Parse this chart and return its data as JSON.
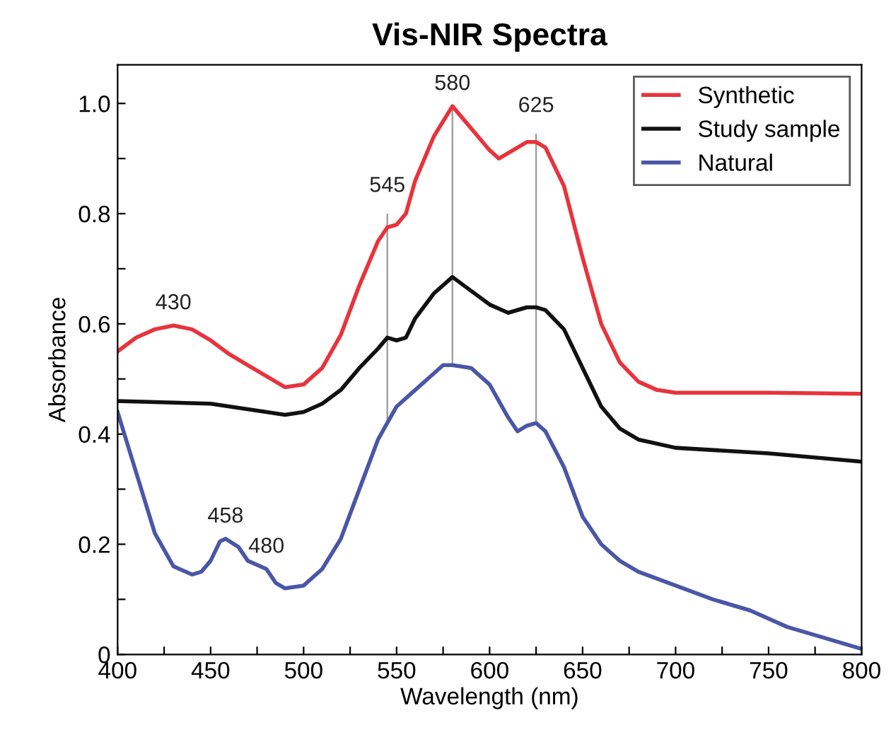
{
  "chart_data": {
    "type": "line",
    "title": "Vis-NIR Spectra",
    "xlabel": "Wavelength (nm)",
    "ylabel": "Absorbance",
    "xlim": [
      400,
      800
    ],
    "xticks": [
      400,
      {
        "value": 425,
        "label": null
      },
      450,
      {
        "value": 475,
        "label": null
      },
      500,
      {
        "value": 525,
        "label": null
      },
      550,
      {
        "value": 575,
        "label": null
      },
      600,
      {
        "value": 625,
        "label": null
      },
      650,
      {
        "value": 675,
        "label": null
      },
      700,
      {
        "value": 725,
        "label": null
      },
      750,
      {
        "value": 775,
        "label": null
      },
      800
    ],
    "ylim": [
      0,
      1.07
    ],
    "yticks": [
      0,
      {
        "value": 0.1,
        "label": null
      },
      0.2,
      {
        "value": 0.3,
        "label": null
      },
      0.4,
      {
        "value": 0.5,
        "label": null
      },
      0.6,
      {
        "value": 0.7,
        "label": null
      },
      0.8,
      {
        "value": 0.9,
        "label": null
      },
      {
        "value": 1,
        "label": "1.0"
      }
    ],
    "grid": false,
    "legend": "top right",
    "marker": "none",
    "line_style": "solid",
    "series": [
      {
        "name": "Synthetic",
        "color": "#e8333c",
        "x": [
          400,
          410,
          420,
          430,
          440,
          450,
          460,
          470,
          480,
          490,
          500,
          510,
          520,
          530,
          540,
          545,
          550,
          555,
          560,
          570,
          580,
          590,
          600,
          605,
          610,
          620,
          625,
          630,
          640,
          650,
          660,
          670,
          680,
          690,
          700,
          750,
          800
        ],
        "values": [
          0.55,
          0.575,
          0.59,
          0.597,
          0.59,
          0.57,
          0.545,
          0.525,
          0.505,
          0.485,
          0.49,
          0.52,
          0.58,
          0.67,
          0.75,
          0.775,
          0.78,
          0.8,
          0.86,
          0.94,
          0.995,
          0.955,
          0.915,
          0.9,
          0.91,
          0.93,
          0.93,
          0.92,
          0.85,
          0.72,
          0.6,
          0.53,
          0.495,
          0.48,
          0.475,
          0.475,
          0.473
        ]
      },
      {
        "name": "Study sample",
        "color": "#111111",
        "x": [
          400,
          450,
          480,
          490,
          500,
          510,
          520,
          530,
          540,
          545,
          550,
          555,
          560,
          570,
          580,
          590,
          600,
          610,
          620,
          625,
          630,
          640,
          650,
          660,
          670,
          680,
          700,
          750,
          800
        ],
        "values": [
          0.46,
          0.455,
          0.44,
          0.435,
          0.44,
          0.455,
          0.48,
          0.52,
          0.555,
          0.575,
          0.57,
          0.575,
          0.61,
          0.655,
          0.685,
          0.66,
          0.635,
          0.62,
          0.63,
          0.63,
          0.625,
          0.59,
          0.52,
          0.45,
          0.41,
          0.39,
          0.375,
          0.365,
          0.35
        ]
      },
      {
        "name": "Natural",
        "color": "#4a56a6",
        "x": [
          400,
          410,
          420,
          430,
          440,
          445,
          450,
          455,
          458,
          465,
          470,
          480,
          485,
          490,
          500,
          510,
          520,
          530,
          540,
          550,
          560,
          570,
          575,
          580,
          590,
          600,
          610,
          615,
          620,
          625,
          630,
          640,
          650,
          660,
          670,
          680,
          700,
          720,
          740,
          760,
          780,
          800
        ],
        "values": [
          0.44,
          0.33,
          0.22,
          0.16,
          0.145,
          0.15,
          0.17,
          0.205,
          0.21,
          0.195,
          0.17,
          0.155,
          0.13,
          0.12,
          0.125,
          0.155,
          0.21,
          0.3,
          0.39,
          0.45,
          0.48,
          0.51,
          0.525,
          0.525,
          0.52,
          0.49,
          0.43,
          0.405,
          0.415,
          0.42,
          0.405,
          0.34,
          0.25,
          0.2,
          0.17,
          0.15,
          0.125,
          0.1,
          0.08,
          0.05,
          0.03,
          0.01
        ]
      }
    ],
    "ref_lines": [
      {
        "axis": "x",
        "value": 545,
        "color": "#999999"
      },
      {
        "axis": "x",
        "value": 580,
        "color": "#999999"
      },
      {
        "axis": "x",
        "value": 625,
        "color": "#999999"
      }
    ],
    "annotations": [
      {
        "text": "430",
        "x": 430,
        "y": 0.597
      },
      {
        "text": "458",
        "x": 458,
        "y": 0.21
      },
      {
        "text": "480",
        "x": 480,
        "y": 0.155
      },
      {
        "text": "545",
        "x": 545,
        "y": 0.81
      },
      {
        "text": "580",
        "x": 580,
        "y": 0.995
      },
      {
        "text": "625",
        "x": 625,
        "y": 0.955
      }
    ]
  }
}
